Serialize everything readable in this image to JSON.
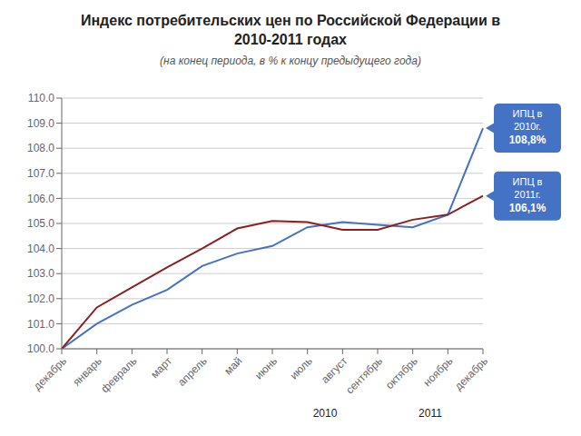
{
  "chart_data": {
    "type": "line",
    "title": "Индекс потребительских цен по Российской Федерации в 2010-2011 годах",
    "subtitle": "(на конец периода, в % к концу предыдущего года)",
    "categories": [
      "декабрь",
      "январь",
      "февраль",
      "март",
      "апрель",
      "май",
      "июнь",
      "июль",
      "август",
      "сентябрь",
      "октябрь",
      "ноябрь",
      "декабрь"
    ],
    "series": [
      {
        "color": "#4472c4",
        "values": [
          100.0,
          101.0,
          101.75,
          102.35,
          103.3,
          103.8,
          104.1,
          104.85,
          105.05,
          104.95,
          104.85,
          105.35,
          108.8
        ]
      },
      {
        "color": "#8b2020",
        "values": [
          100.0,
          101.65,
          102.45,
          103.25,
          104.0,
          104.8,
          105.1,
          105.05,
          104.75,
          104.75,
          105.15,
          105.35,
          106.1
        ]
      }
    ],
    "ylim": [
      100.0,
      110.0
    ],
    "yticks": [
      {
        "value": 100.0,
        "label": "100.0"
      },
      {
        "value": 101.0,
        "label": "101.0"
      },
      {
        "value": 102.0,
        "label": "102.0"
      },
      {
        "value": 103.0,
        "label": "103.0"
      },
      {
        "value": 104.0,
        "label": "104.0"
      },
      {
        "value": 105.0,
        "label": "105.0"
      },
      {
        "value": 106.0,
        "label": "106.0"
      },
      {
        "value": 107.0,
        "label": "107.0"
      },
      {
        "value": 108.0,
        "label": "108.0"
      },
      {
        "value": 109.0,
        "label": "109.0"
      },
      {
        "value": 110.0,
        "label": "110.0"
      }
    ],
    "grid": true,
    "annotations": [
      {
        "text": "2010",
        "x": 7.5
      },
      {
        "text": "2011",
        "x": 10.5
      },
      {
        "text": [
          "ИПЦ в",
          "2010г."
        ],
        "value": 108.8,
        "label": "108,8%",
        "color": "#4472c4"
      },
      {
        "text": [
          "ИПЦ в",
          "2011г."
        ],
        "value": 106.1,
        "label": "106,1%",
        "color": "#4472c4"
      }
    ]
  }
}
